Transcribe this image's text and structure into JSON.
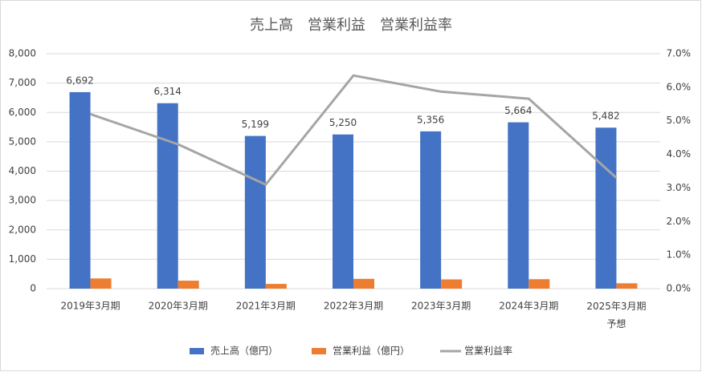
{
  "chart_data": {
    "type": "bar-line",
    "title": "売上高　営業利益　営業利益率",
    "categories": [
      "2019年3月期",
      "2020年3月期",
      "2021年3月期",
      "2022年3月期",
      "2023年3月期",
      "2024年3月期",
      "2025年3月期\n予想"
    ],
    "series": [
      {
        "name": "売上高（億円）",
        "type": "bar",
        "color": "#4472c4",
        "values": [
          6692,
          6314,
          5199,
          5250,
          5356,
          5664,
          5482
        ],
        "value_labels": [
          "6,692",
          "6,314",
          "5,199",
          "5,250",
          "5,356",
          "5,664",
          "5,482"
        ]
      },
      {
        "name": "営業利益（億円）",
        "type": "bar",
        "color": "#ed7d31",
        "values": [
          348,
          271,
          161,
          333,
          314,
          321,
          181
        ]
      },
      {
        "name": "営業利益率",
        "type": "line",
        "axis": "y2",
        "color": "#a5a5a5",
        "values": [
          5.2,
          4.3,
          3.1,
          6.35,
          5.87,
          5.66,
          3.3
        ]
      }
    ],
    "ylim": [
      0,
      8000
    ],
    "yticks": [
      0,
      {
        "value": 1000,
        "label": "1,000"
      },
      {
        "value": 2000,
        "label": "2,000"
      },
      {
        "value": 3000,
        "label": "3,000"
      },
      {
        "value": 4000,
        "label": "4,000"
      },
      {
        "value": 5000,
        "label": "5,000"
      },
      {
        "value": 6000,
        "label": "6,000"
      },
      {
        "value": 7000,
        "label": "7,000"
      },
      {
        "value": 8000,
        "label": "8,000"
      }
    ],
    "y2lim": [
      0,
      7
    ],
    "y2ticks": [
      {
        "value": 0,
        "label": "0.0%"
      },
      {
        "value": 1,
        "label": "1.0%"
      },
      {
        "value": 2,
        "label": "2.0%"
      },
      {
        "value": 3,
        "label": "3.0%"
      },
      {
        "value": 4,
        "label": "4.0%"
      },
      {
        "value": 5,
        "label": "5.0%"
      },
      {
        "value": 6,
        "label": "6.0%"
      },
      {
        "value": 7,
        "label": "7.0%"
      }
    ],
    "grid": true,
    "legend": "bottom"
  }
}
